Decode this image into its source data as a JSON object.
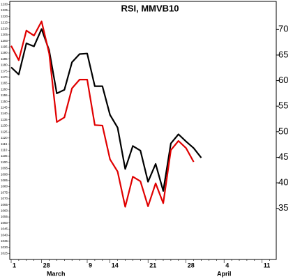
{
  "chart_data": {
    "type": "line",
    "title": "RSI, MMVB10",
    "categories": [
      "1",
      null,
      null,
      null,
      "28",
      null,
      null,
      null,
      null,
      null,
      "9",
      null,
      null,
      "14",
      null,
      null,
      null,
      null,
      "21",
      null,
      null,
      null,
      null,
      "28",
      null,
      null,
      null,
      null,
      "4",
      null,
      null,
      null,
      null,
      "11",
      null
    ],
    "months": [
      "March",
      "April"
    ],
    "series": [
      {
        "color": "#000000",
        "values": [
          62.6,
          61.2,
          67.3,
          66.7,
          70.1,
          65.9,
          57.5,
          58.2,
          63.6,
          65.2,
          65.3,
          58.9,
          58.9,
          53.3,
          50.8,
          42.7,
          47.2,
          46.3,
          40.2,
          43.7,
          38.4,
          47.7,
          49.5,
          48.1,
          46.8,
          44.9,
          null,
          null,
          null,
          null,
          null,
          null,
          null,
          null,
          null
        ]
      },
      {
        "color": "#e00000",
        "values": [
          66.8,
          64.0,
          69.8,
          68.8,
          71.6,
          65.3,
          51.9,
          52.8,
          58.5,
          60.2,
          60.2,
          51.3,
          51.2,
          44.6,
          42.2,
          35.3,
          41.2,
          40.3,
          35.4,
          39.9,
          36.0,
          46.4,
          48.2,
          46.8,
          44.1,
          null,
          null,
          null,
          null,
          null,
          null,
          null,
          null,
          null,
          null
        ]
      }
    ],
    "ylim": [
      25,
      75.5
    ],
    "yticks": [
      35,
      40,
      45,
      50,
      55,
      60,
      65,
      70
    ],
    "y2lim": [
      1020,
      1232.5
    ],
    "y2ticks": [
      1230,
      1225,
      1220,
      1215,
      1210,
      1205,
      1200,
      1195,
      1190,
      1185,
      1180,
      1175,
      1170,
      1165,
      1160,
      1155,
      1150,
      1145,
      1140,
      1135,
      1130,
      1125,
      1120,
      1115,
      1110,
      1105,
      1100,
      1095,
      1090,
      1085,
      1080,
      1075,
      1070,
      1065,
      1060,
      1055,
      1050,
      1045,
      1040,
      1035,
      1030,
      1025
    ],
    "grid": false
  }
}
